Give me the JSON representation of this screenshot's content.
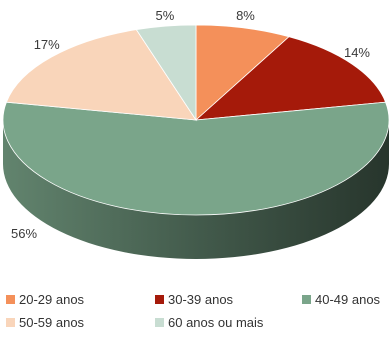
{
  "chart_data": {
    "type": "pie",
    "title": "",
    "categories": [
      "20-29 anos",
      "30-39 anos",
      "40-49 anos",
      "50-59 anos",
      "60 anos ou mais"
    ],
    "values": [
      8,
      14,
      56,
      17,
      5
    ],
    "value_labels": [
      "8%",
      "14%",
      "56%",
      "17%",
      "5%"
    ],
    "colors": [
      "#f4905a",
      "#a51a0a",
      "#7aa58a",
      "#f9d5ba",
      "#c8ddd2"
    ],
    "style": "3d",
    "legend": {
      "position": "bottom",
      "entries": [
        "20-29 anos",
        "30-39 anos",
        "40-49 anos",
        "50-59 anos",
        "60 anos ou mais"
      ]
    }
  }
}
